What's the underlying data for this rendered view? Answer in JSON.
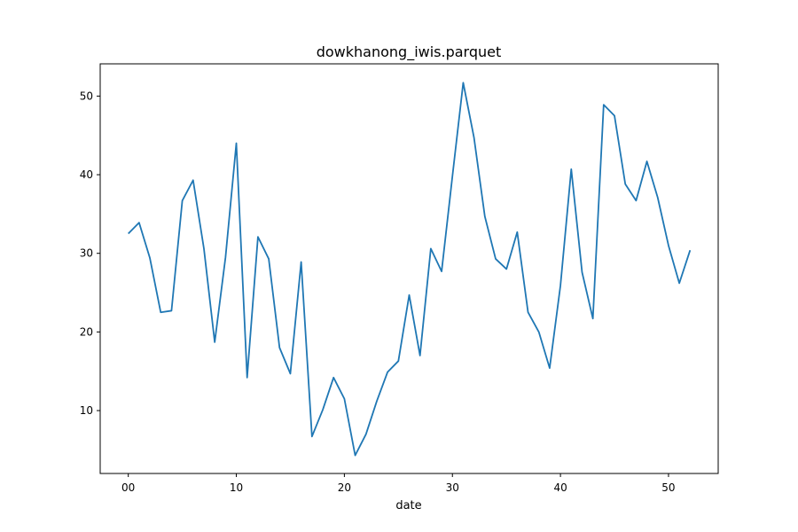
{
  "chart_data": {
    "type": "line",
    "title": "dowkhanong_iwis.parquet",
    "xlabel": "date",
    "ylabel": "",
    "xlim": [
      -2.6,
      54.6
    ],
    "ylim": [
      2.0,
      54.1
    ],
    "xticks": [
      0,
      10,
      20,
      30,
      40,
      50
    ],
    "xtick_labels": [
      "00",
      "10",
      "20",
      "30",
      "40",
      "50"
    ],
    "yticks": [
      10,
      20,
      30,
      40,
      50
    ],
    "ytick_labels": [
      "10",
      "20",
      "30",
      "40",
      "50"
    ],
    "grid": false,
    "line_color": "#1f77b4",
    "x": [
      0,
      1,
      2,
      3,
      4,
      5,
      6,
      7,
      8,
      9,
      10,
      11,
      12,
      13,
      14,
      15,
      16,
      17,
      18,
      19,
      20,
      21,
      22,
      23,
      24,
      25,
      26,
      27,
      28,
      29,
      30,
      31,
      32,
      33,
      34,
      35,
      36,
      37,
      38,
      39,
      40,
      41,
      42,
      43,
      44,
      45,
      46,
      47,
      48,
      49,
      50,
      51,
      52
    ],
    "y": [
      32.5,
      33.9,
      29.4,
      22.5,
      22.7,
      36.7,
      39.3,
      30.6,
      18.7,
      29.5,
      44.0,
      14.2,
      32.1,
      29.3,
      18.0,
      14.7,
      28.9,
      6.7,
      10.1,
      14.2,
      11.5,
      4.3,
      7.0,
      11.2,
      14.9,
      16.3,
      24.7,
      17.0,
      30.6,
      27.7,
      39.8,
      51.7,
      44.7,
      34.7,
      29.3,
      28.0,
      32.7,
      22.5,
      20.0,
      15.4,
      25.9,
      40.7,
      27.6,
      21.7,
      48.9,
      47.5,
      38.8,
      36.7,
      41.7,
      37.1,
      31.0,
      26.2,
      30.4
    ]
  }
}
